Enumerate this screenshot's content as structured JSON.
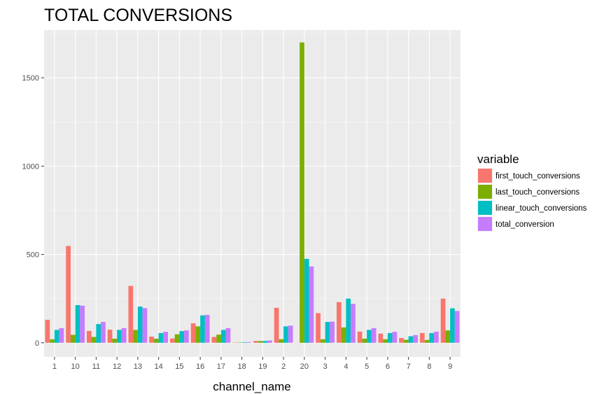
{
  "chart_data": {
    "type": "bar",
    "title": "TOTAL CONVERSIONS",
    "xlabel": "channel_name",
    "ylabel": "",
    "categories": [
      "1",
      "10",
      "11",
      "12",
      "13",
      "14",
      "15",
      "16",
      "17",
      "18",
      "19",
      "2",
      "20",
      "3",
      "4",
      "5",
      "6",
      "7",
      "8",
      "9"
    ],
    "ylim": [
      -80,
      1770
    ],
    "yticks": [
      0,
      500,
      1000,
      1500
    ],
    "grid": true,
    "legend": {
      "title": "variable",
      "position": "right"
    },
    "series": [
      {
        "name": "first_touch_conversions",
        "color": "#F8766D",
        "values": [
          130,
          548,
          67,
          74,
          322,
          35,
          24,
          110,
          33,
          2,
          10,
          198,
          0,
          168,
          230,
          63,
          52,
          27,
          55,
          250
        ]
      },
      {
        "name": "last_touch_conversions",
        "color": "#7CAE00",
        "values": [
          20,
          45,
          33,
          23,
          73,
          23,
          48,
          93,
          46,
          2,
          10,
          20,
          1700,
          20,
          87,
          23,
          20,
          17,
          16,
          70
        ]
      },
      {
        "name": "linear_touch_conversions",
        "color": "#00BFC4",
        "values": [
          73,
          213,
          106,
          73,
          205,
          55,
          66,
          155,
          73,
          3,
          10,
          93,
          475,
          118,
          250,
          73,
          55,
          37,
          55,
          195
        ]
      },
      {
        "name": "total_conversion",
        "color": "#C77CFF",
        "values": [
          83,
          210,
          118,
          83,
          196,
          62,
          70,
          158,
          83,
          4,
          13,
          97,
          432,
          120,
          220,
          83,
          62,
          44,
          63,
          180
        ]
      }
    ]
  },
  "colors": {
    "panel": "#EBEBEB",
    "grid_major": "#FFFFFF",
    "grid_minor": "#F5F5F5"
  }
}
